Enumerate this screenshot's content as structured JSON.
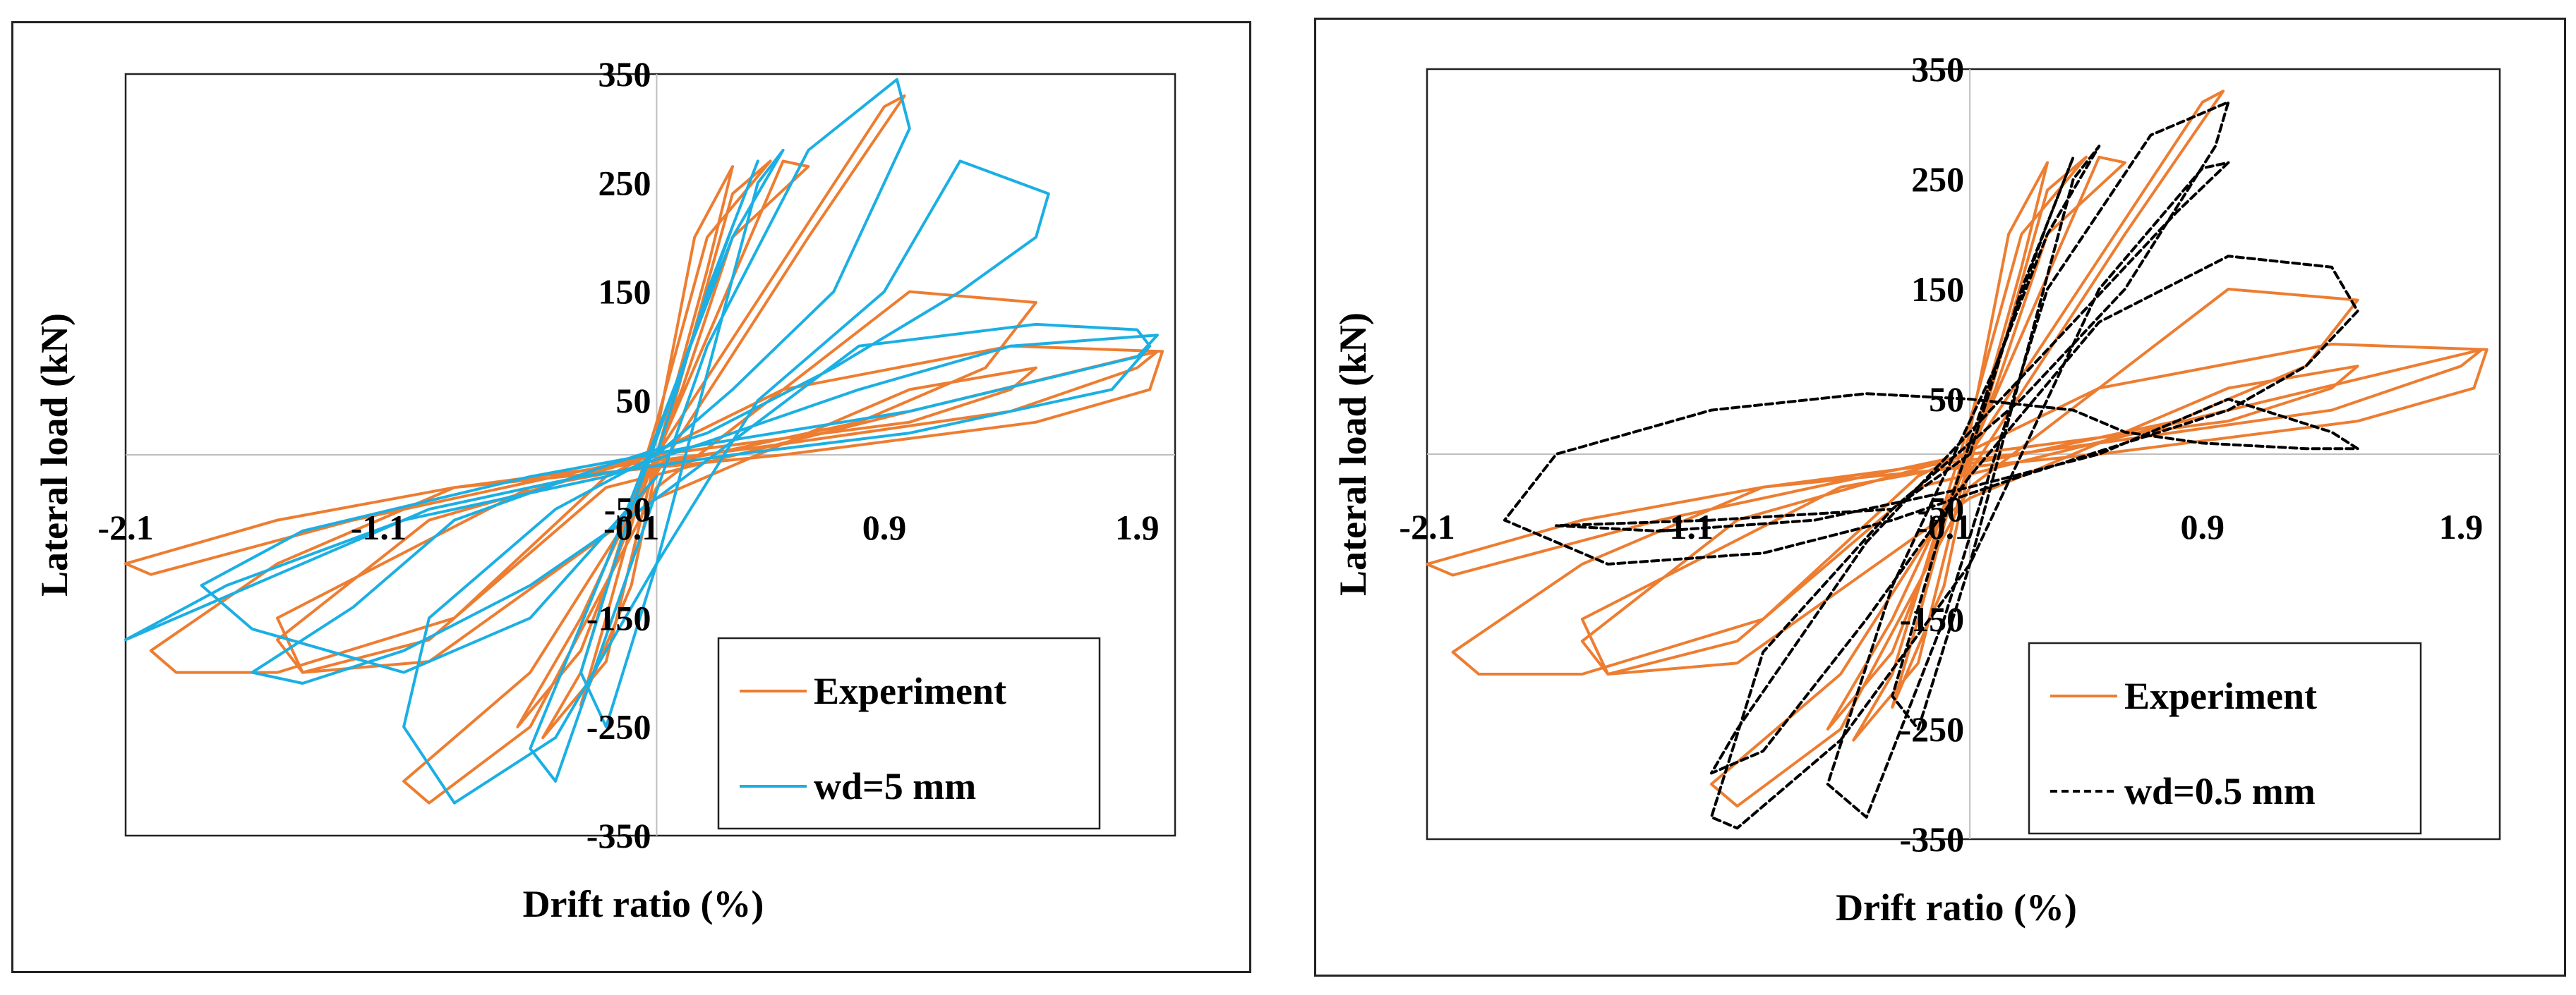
{
  "chart_data": [
    {
      "type": "line",
      "panel": "left",
      "xlabel": "Drift ratio (%)",
      "ylabel": "Lateral load (kN)",
      "xlim": [
        -2.1,
        2.05
      ],
      "ylim": [
        -350,
        350
      ],
      "xticks": [
        -2.1,
        -1.1,
        -0.1,
        0.9,
        1.9
      ],
      "xtick_labels": [
        "-2.1",
        "-1.1",
        "-0.1",
        "0.9",
        "1.9"
      ],
      "yticks": [
        350,
        250,
        150,
        50,
        -50,
        -150,
        -250,
        -350
      ],
      "ytick_labels": [
        "350",
        "250",
        "150",
        "50",
        "-50",
        "-150",
        "-250",
        "-350"
      ],
      "legend_position": "bottom-right",
      "series": [
        {
          "name": "Experiment",
          "color": "#ED7D31",
          "dash": "solid",
          "x": [
            0,
            0.2,
            0.3,
            0.15,
            0,
            -0.2,
            -0.3,
            -0.1,
            0,
            0.3,
            0.45,
            0.2,
            0,
            -0.3,
            -0.45,
            -0.2,
            0,
            0.5,
            0.6,
            0.3,
            0.1,
            -0.3,
            -0.55,
            -0.3,
            0,
            0.9,
            0.98,
            0.6,
            0.1,
            -0.5,
            -1.0,
            -0.9,
            -0.5,
            0,
            1.0,
            1.5,
            1.3,
            0.8,
            0.2,
            -0.5,
            -1.5,
            -1.4,
            -0.9,
            0,
            1.0,
            1.5,
            1.4,
            1.0,
            0,
            -0.9,
            -1.5,
            -1.4,
            -0.9,
            -0.2,
            1.0,
            1.98,
            1.9,
            1.4,
            0.5,
            -0.8,
            -1.5,
            -2.0,
            -1.9,
            -1.5,
            -0.8,
            -0.2,
            0.5,
            1.4,
            2.0,
            1.95,
            1.5,
            0.5,
            -0.8,
            -1.5,
            -2.1,
            -2.0,
            -1.2,
            -0.2,
            0
          ],
          "y": [
            0,
            170,
            265,
            200,
            20,
            -150,
            -230,
            -120,
            -10,
            240,
            270,
            200,
            30,
            -200,
            -260,
            -190,
            0,
            270,
            265,
            200,
            60,
            -180,
            -250,
            -150,
            0,
            320,
            330,
            200,
            20,
            -200,
            -300,
            -320,
            -250,
            -30,
            150,
            140,
            80,
            30,
            0,
            -30,
            -150,
            -200,
            -190,
            -40,
            60,
            80,
            60,
            30,
            0,
            -60,
            -170,
            -200,
            -170,
            -30,
            40,
            95,
            80,
            40,
            10,
            -30,
            -100,
            -180,
            -200,
            -200,
            -150,
            -20,
            60,
            100,
            95,
            60,
            30,
            0,
            -30,
            -60,
            -100,
            -110,
            -60,
            -10,
            0
          ]
        },
        {
          "name": "wd=5 mm",
          "color": "#1BAFE3",
          "dash": "solid",
          "x": [
            0,
            0.2,
            0.4,
            0.3,
            0.1,
            -0.1,
            -0.3,
            -0.2,
            0,
            0.4,
            0.5,
            0.3,
            0.1,
            -0.2,
            -0.5,
            -0.4,
            -0.1,
            0.2,
            0.6,
            0.95,
            1.0,
            0.7,
            0.3,
            0,
            -0.4,
            -0.9,
            -1.0,
            -0.8,
            -0.4,
            0,
            0.4,
            0.9,
            1.2,
            1.55,
            1.5,
            1.2,
            0.7,
            0.2,
            -0.2,
            -0.8,
            -1.2,
            -1.6,
            -1.4,
            -1.0,
            -0.5,
            0,
            0.8,
            1.5,
            1.9,
            1.95,
            1.8,
            1.0,
            0.3,
            -0.3,
            -0.9,
            -1.4,
            -1.9,
            -2.1,
            -1.7,
            -1.0,
            -0.2,
            0.3,
            0.8,
            1.4,
            1.98,
            1.9,
            1.0,
            0.2,
            -0.5,
            -1.4,
            -1.8,
            -1.6,
            -1.0,
            -0.5,
            0
          ],
          "y": [
            0,
            150,
            270,
            210,
            80,
            -50,
            -200,
            -250,
            -100,
            250,
            280,
            200,
            80,
            -100,
            -270,
            -300,
            -100,
            100,
            280,
            345,
            300,
            150,
            60,
            0,
            -50,
            -150,
            -250,
            -320,
            -260,
            -100,
            50,
            150,
            270,
            240,
            200,
            150,
            80,
            20,
            -10,
            -60,
            -140,
            -200,
            -210,
            -180,
            -120,
            -40,
            100,
            120,
            115,
            100,
            60,
            20,
            0,
            -20,
            -50,
            -100,
            -150,
            -170,
            -120,
            -60,
            -20,
            20,
            60,
            100,
            110,
            90,
            40,
            10,
            -20,
            -70,
            -120,
            -160,
            -200,
            -150,
            -20
          ]
        }
      ]
    },
    {
      "type": "line",
      "panel": "right",
      "xlabel": "Drift ratio (%)",
      "ylabel": "Lateral load (kN)",
      "xlim": [
        -2.1,
        2.05
      ],
      "ylim": [
        -350,
        350
      ],
      "xticks": [
        -2.1,
        -1.1,
        -0.1,
        0.9,
        1.9
      ],
      "xtick_labels": [
        "-2.1",
        "-1.1",
        "-0.1",
        "0.9",
        "1.9"
      ],
      "yticks": [
        350,
        250,
        150,
        50,
        -50,
        -150,
        -250,
        -350
      ],
      "ytick_labels": [
        "350",
        "250",
        "150",
        "50",
        "-50",
        "-150",
        "-250",
        "-350"
      ],
      "legend_position": "bottom-right",
      "series": [
        {
          "name": "Experiment",
          "color": "#ED7D31",
          "dash": "solid",
          "x": [
            0,
            0.2,
            0.3,
            0.15,
            0,
            -0.2,
            -0.3,
            -0.1,
            0,
            0.3,
            0.45,
            0.2,
            0,
            -0.3,
            -0.45,
            -0.2,
            0,
            0.5,
            0.6,
            0.3,
            0.1,
            -0.3,
            -0.55,
            -0.3,
            0,
            0.9,
            0.98,
            0.6,
            0.1,
            -0.5,
            -1.0,
            -0.9,
            -0.5,
            0,
            1.0,
            1.5,
            1.3,
            0.8,
            0.2,
            -0.5,
            -1.5,
            -1.4,
            -0.9,
            0,
            1.0,
            1.5,
            1.4,
            1.0,
            0,
            -0.9,
            -1.5,
            -1.4,
            -0.9,
            -0.2,
            1.0,
            1.98,
            1.9,
            1.4,
            0.5,
            -0.8,
            -1.5,
            -2.0,
            -1.9,
            -1.5,
            -0.8,
            -0.2,
            0.5,
            1.4,
            2.0,
            1.95,
            1.5,
            0.5,
            -0.8,
            -1.5,
            -2.1,
            -2.0,
            -1.2,
            -0.2,
            0
          ],
          "y": [
            0,
            170,
            265,
            200,
            20,
            -150,
            -230,
            -120,
            -10,
            240,
            270,
            200,
            30,
            -200,
            -260,
            -190,
            0,
            270,
            265,
            200,
            60,
            -180,
            -250,
            -150,
            0,
            320,
            330,
            200,
            20,
            -200,
            -300,
            -320,
            -250,
            -30,
            150,
            140,
            80,
            30,
            0,
            -30,
            -150,
            -200,
            -190,
            -40,
            60,
            80,
            60,
            30,
            0,
            -60,
            -170,
            -200,
            -170,
            -30,
            40,
            95,
            80,
            40,
            10,
            -30,
            -100,
            -180,
            -200,
            -200,
            -150,
            -20,
            60,
            100,
            95,
            60,
            30,
            0,
            -30,
            -60,
            -100,
            -110,
            -60,
            -10,
            0
          ]
        },
        {
          "name": "wd=0.5 mm",
          "color": "#000000",
          "dash": "dashed",
          "x": [
            0,
            0.2,
            0.4,
            0.3,
            0.1,
            -0.1,
            -0.3,
            -0.2,
            0,
            0.4,
            0.5,
            0.3,
            0.1,
            -0.3,
            -0.55,
            -0.4,
            -0.1,
            0.3,
            0.7,
            1.0,
            0.95,
            0.6,
            0.2,
            -0.3,
            -0.8,
            -1.0,
            -0.9,
            -0.5,
            0,
            0.5,
            0.9,
            1.0,
            0.8,
            0.4,
            0,
            -0.4,
            -0.9,
            -1.0,
            -0.8,
            -0.4,
            0,
            0.5,
            1.0,
            1.4,
            1.5,
            1.3,
            1.0,
            0.6,
            0.2,
            -0.3,
            -0.8,
            -1.4,
            -1.8,
            -1.6,
            -1.0,
            -0.4,
            0,
            0.4,
            0.6,
            0.9,
            1.3,
            1.5,
            1.4,
            1.0,
            0.5,
            0,
            -0.6,
            -1.2,
            -1.6,
            -1.0,
            -0.3,
            0
          ],
          "y": [
            0,
            150,
            270,
            210,
            80,
            -60,
            -220,
            -250,
            -100,
            250,
            280,
            200,
            80,
            -120,
            -300,
            -330,
            -150,
            150,
            290,
            320,
            280,
            150,
            50,
            -50,
            -180,
            -330,
            -340,
            -260,
            -100,
            150,
            260,
            265,
            220,
            120,
            20,
            -80,
            -250,
            -290,
            -270,
            -150,
            -20,
            120,
            180,
            170,
            130,
            80,
            40,
            10,
            -20,
            -60,
            -90,
            -100,
            -60,
            0,
            40,
            55,
            50,
            40,
            20,
            10,
            5,
            5,
            20,
            50,
            0,
            -30,
            -60,
            -70,
            -65,
            -60,
            -50,
            0
          ]
        }
      ]
    }
  ]
}
